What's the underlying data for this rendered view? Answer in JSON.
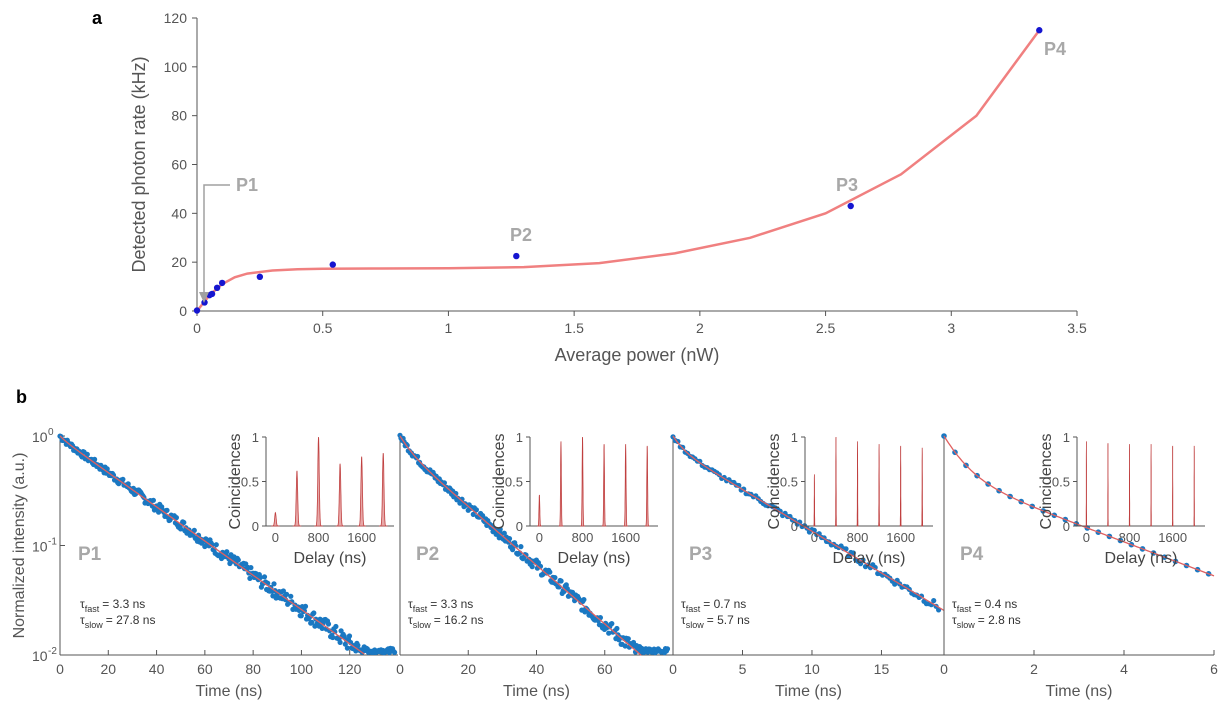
{
  "chart_data": [
    {
      "panel": "a",
      "type": "scatter",
      "xlabel": "Average power (nW)",
      "ylabel": "Detected photon rate (kHz)",
      "xlim": [
        0,
        3.5
      ],
      "ylim": [
        0,
        120
      ],
      "xticks": [
        "0",
        "0.5",
        "1",
        "1.5",
        "2",
        "2.5",
        "3",
        "3.5"
      ],
      "yticks": [
        "0",
        "20",
        "40",
        "60",
        "80",
        "100",
        "120"
      ],
      "points": [
        {
          "x": 0.0,
          "y": 0.2
        },
        {
          "x": 0.03,
          "y": 3.5
        },
        {
          "x": 0.05,
          "y": 6.5
        },
        {
          "x": 0.06,
          "y": 7.0
        },
        {
          "x": 0.08,
          "y": 9.5
        },
        {
          "x": 0.1,
          "y": 11.5
        },
        {
          "x": 0.25,
          "y": 14.0
        },
        {
          "x": 0.54,
          "y": 19.0
        },
        {
          "x": 1.27,
          "y": 22.5
        },
        {
          "x": 2.6,
          "y": 43.0
        },
        {
          "x": 3.35,
          "y": 115.0
        }
      ],
      "fit": {
        "color": "#f08080",
        "x": [
          0,
          0.05,
          0.1,
          0.15,
          0.2,
          0.3,
          0.4,
          0.5,
          0.7,
          1.0,
          1.3,
          1.6,
          1.9,
          2.2,
          2.5,
          2.8,
          3.1,
          3.35
        ],
        "y": [
          0,
          6.5,
          11.0,
          13.8,
          15.3,
          16.6,
          17.1,
          17.3,
          17.4,
          17.5,
          18.0,
          19.6,
          23.6,
          30.0,
          40.0,
          56.0,
          80.0,
          115.0
        ]
      },
      "annotations": [
        "P1",
        "P2",
        "P3",
        "P4"
      ],
      "colors": {
        "points": "#1515d0",
        "fit": "#f08080",
        "labels": "#a8a8a8"
      }
    },
    {
      "panel": "b",
      "type": "scatter",
      "ylabel": "Normalized intensity (a.u.)",
      "yscale": "log",
      "ylim": [
        0.01,
        1
      ],
      "subpanels": [
        {
          "label": "P1",
          "xlabel": "Time (ns)",
          "xlim": [
            0,
            140
          ],
          "xticks": [
            "0",
            "20",
            "40",
            "60",
            "80",
            "100",
            "120"
          ],
          "tau_fast": "= 3.3 ns",
          "tau_slow": "= 27.8 ns",
          "inset_xticks": [
            "0",
            "800",
            "1600"
          ],
          "inset_peak_heights": [
            0.15,
            0.62,
            1.0,
            0.7,
            0.78,
            0.82
          ],
          "inset_peak_positions": [
            0,
            400,
            800,
            1200,
            1600,
            2000
          ]
        },
        {
          "label": "P2",
          "xlabel": "Time (ns)",
          "xlim": [
            0,
            80
          ],
          "xticks": [
            "0",
            "20",
            "40",
            "60"
          ],
          "tau_fast": "= 3.3 ns",
          "tau_slow": "= 16.2 ns",
          "inset_xticks": [
            "0",
            "800",
            "1600"
          ],
          "inset_peak_heights": [
            0.35,
            0.95,
            1.0,
            0.92,
            0.92,
            0.9
          ],
          "inset_peak_positions": [
            0,
            400,
            800,
            1200,
            1600,
            2000
          ]
        },
        {
          "label": "P3",
          "xlabel": "Time (ns)",
          "xlim": [
            0,
            19.5
          ],
          "xticks": [
            "0",
            "5",
            "10",
            "15"
          ],
          "tau_fast": "= 0.7 ns",
          "tau_slow": "= 5.7 ns",
          "inset_xticks": [
            "0",
            "800",
            "1600"
          ],
          "inset_peak_heights": [
            0.58,
            1.0,
            0.95,
            0.92,
            0.9,
            0.88
          ],
          "inset_peak_positions": [
            0,
            400,
            800,
            1200,
            1600,
            2000
          ]
        },
        {
          "label": "P4",
          "xlabel": "Time (ns)",
          "xlim": [
            0,
            6
          ],
          "xticks": [
            "0",
            "2",
            "4",
            "6"
          ],
          "tau_fast": "= 0.4 ns",
          "tau_slow": "= 2.8 ns",
          "inset_xticks": [
            "0",
            "800",
            "1600"
          ],
          "inset_peak_heights": [
            0.95,
            0.93,
            0.92,
            0.92,
            0.9,
            0.9
          ],
          "inset_peak_positions": [
            0,
            400,
            800,
            1200,
            1600,
            2000
          ]
        }
      ],
      "inset_xlabel": "Delay (ns)",
      "inset_ylabel": "Coincidences",
      "inset_yticks": [
        "0",
        "0.5",
        "1"
      ],
      "colors": {
        "points": "#1a78c2",
        "fit": "#e06060",
        "inset_fill": "#e8a8a8",
        "inset_line": "#c04040"
      }
    }
  ],
  "labels": {
    "panel_a": "a",
    "panel_b": "b",
    "tau_fast_sub": "fast",
    "tau_slow_sub": "slow",
    "tau_symbol": "τ",
    "ylog_major_base": "10",
    "ylog_exp_top": "0",
    "ylog_exp_mid": "-1",
    "ylog_exp_bot": "-2"
  }
}
